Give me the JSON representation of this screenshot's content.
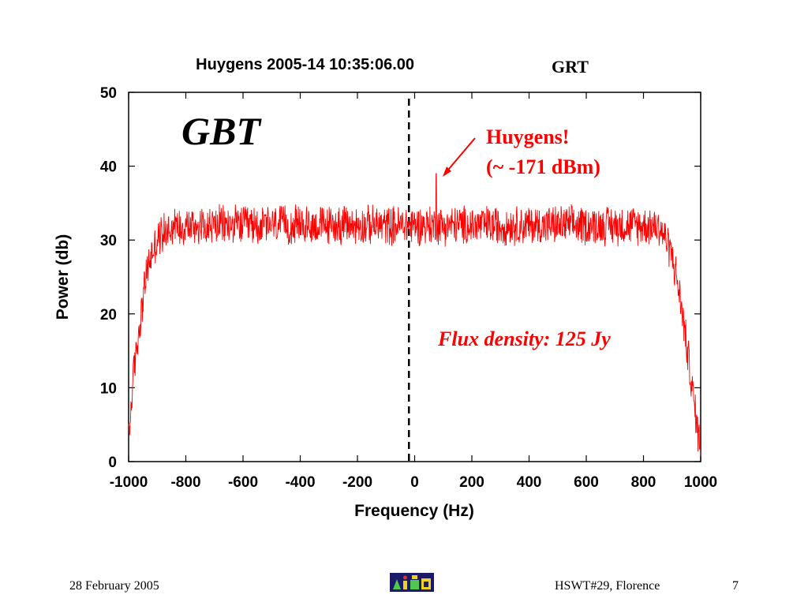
{
  "chart_data": {
    "type": "line",
    "title": "Huygens 2005-14 10:35:06.00",
    "title_suffix": "GRT",
    "xlabel": "Frequency (Hz)",
    "ylabel": "Power (db)",
    "xlim": [
      -1000,
      1000
    ],
    "ylim": [
      0,
      50
    ],
    "xticks": [
      -1000,
      -800,
      -600,
      -400,
      -200,
      0,
      200,
      400,
      600,
      800,
      1000
    ],
    "yticks": [
      0,
      10,
      20,
      30,
      40,
      50
    ],
    "grid": false,
    "line_color": "#ff0000",
    "series": [
      {
        "x": [
          -1000,
          -990,
          -980,
          -960,
          -940,
          -920,
          -900,
          -880,
          -860,
          -840,
          -800,
          -600,
          -400,
          -200,
          0,
          200,
          400,
          600,
          800,
          840,
          860,
          880,
          900,
          920,
          940,
          960,
          980,
          990,
          1000
        ],
        "values": [
          3,
          8,
          13,
          19,
          25,
          28,
          30,
          31,
          31.5,
          32,
          32,
          32,
          32,
          32,
          32,
          32,
          32,
          32,
          32,
          32,
          31.5,
          30,
          28,
          24,
          19,
          13,
          7,
          4,
          2.5
        ]
      }
    ],
    "noise_amplitude_db": 3,
    "peak": {
      "x": 75,
      "value": 39
    },
    "vline": {
      "x": -20,
      "style": "dashed"
    },
    "annotations": {
      "instrument": "GBT",
      "peak_label_1": "Huygens!",
      "peak_label_2": "(~ -171 dBm)",
      "flux": "Flux density: 125 Jy"
    }
  },
  "footer": {
    "date": "28 February 2005",
    "event": "HSWT#29, Florence",
    "page": "7",
    "logo_icon": "jive-logo-icon"
  }
}
